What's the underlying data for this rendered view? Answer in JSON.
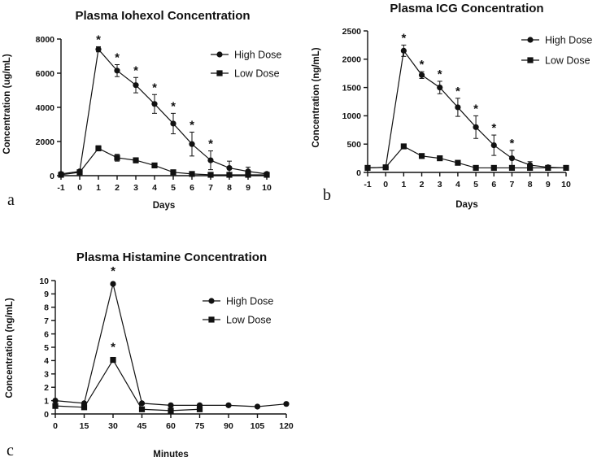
{
  "chart_data": [
    {
      "type": "line",
      "panel_label": "a",
      "title": "Plasma Iohexol Concentration",
      "xlabel": "Days",
      "ylabel": "Concentration (ug/mL)",
      "xlim": [
        -1,
        10
      ],
      "ylim": [
        0,
        8000
      ],
      "x_ticks": [
        -1,
        0,
        1,
        2,
        3,
        4,
        5,
        6,
        7,
        8,
        9,
        10
      ],
      "y_ticks": [
        0,
        2000,
        4000,
        6000,
        8000
      ],
      "significance_marker": "*",
      "significant_x": [
        1,
        2,
        3,
        4,
        5,
        6,
        7
      ],
      "legend": [
        "High Dose",
        "Low Dose"
      ],
      "series": [
        {
          "name": "High Dose",
          "marker": "circle",
          "x": [
            -1,
            0,
            1,
            2,
            3,
            4,
            5,
            6,
            7,
            8,
            9,
            10
          ],
          "values": [
            100,
            250,
            7400,
            6150,
            5300,
            4200,
            3050,
            1850,
            900,
            450,
            250,
            100
          ],
          "error": [
            0,
            0,
            150,
            350,
            450,
            550,
            600,
            700,
            550,
            400,
            250,
            0
          ]
        },
        {
          "name": "Low Dose",
          "marker": "square",
          "x": [
            -1,
            0,
            1,
            2,
            3,
            4,
            5,
            6,
            7,
            8,
            9,
            10
          ],
          "values": [
            50,
            200,
            1600,
            1050,
            900,
            600,
            200,
            100,
            50,
            50,
            50,
            50
          ],
          "error": [
            0,
            0,
            150,
            200,
            150,
            100,
            0,
            0,
            0,
            0,
            0,
            0
          ]
        }
      ]
    },
    {
      "type": "line",
      "panel_label": "b",
      "title": "Plasma ICG Concentration",
      "xlabel": "Days",
      "ylabel": "Concentration (ng/mL)",
      "xlim": [
        -1,
        10
      ],
      "ylim": [
        0,
        2500
      ],
      "x_ticks": [
        -1,
        0,
        1,
        2,
        3,
        4,
        5,
        6,
        7,
        8,
        9,
        10
      ],
      "y_ticks": [
        0,
        500,
        1000,
        1500,
        2000,
        2500
      ],
      "significance_marker": "*",
      "significant_x": [
        1,
        2,
        3,
        4,
        5,
        6,
        7
      ],
      "legend": [
        "High Dose",
        "Low Dose"
      ],
      "series": [
        {
          "name": "High Dose",
          "marker": "circle",
          "x": [
            -1,
            0,
            1,
            2,
            3,
            4,
            5,
            6,
            7,
            8,
            9,
            10
          ],
          "values": [
            80,
            90,
            2150,
            1720,
            1500,
            1150,
            800,
            480,
            250,
            130,
            90,
            80
          ],
          "error": [
            0,
            0,
            100,
            60,
            110,
            160,
            200,
            180,
            140,
            60,
            0,
            0
          ]
        },
        {
          "name": "Low Dose",
          "marker": "square",
          "x": [
            -1,
            0,
            1,
            2,
            3,
            4,
            5,
            6,
            7,
            8,
            9,
            10
          ],
          "values": [
            80,
            90,
            460,
            290,
            250,
            170,
            80,
            80,
            80,
            80,
            80,
            80
          ],
          "error": [
            0,
            0,
            0,
            40,
            40,
            30,
            0,
            0,
            0,
            0,
            0,
            0
          ]
        }
      ]
    },
    {
      "type": "line",
      "panel_label": "c",
      "title": "Plasma Histamine Concentration",
      "xlabel": "Minutes",
      "ylabel": "Concentration (ng/mL)",
      "xlim": [
        0,
        120
      ],
      "ylim": [
        0,
        10
      ],
      "x_ticks": [
        0,
        15,
        30,
        45,
        60,
        75,
        90,
        105,
        120
      ],
      "y_ticks": [
        0,
        1,
        2,
        3,
        4,
        5,
        6,
        7,
        8,
        9,
        10
      ],
      "significance_marker": "*",
      "significant_points": [
        {
          "x": 30,
          "y": 9.75
        },
        {
          "x": 30,
          "y": 4.05
        }
      ],
      "legend": [
        "High Dose",
        "Low Dose"
      ],
      "series": [
        {
          "name": "High Dose",
          "marker": "circle",
          "x": [
            0,
            15,
            30,
            45,
            60,
            75,
            90,
            105,
            120
          ],
          "values": [
            1.0,
            0.8,
            9.75,
            0.8,
            0.65,
            0.65,
            0.65,
            0.55,
            0.75
          ]
        },
        {
          "name": "Low Dose",
          "marker": "square",
          "x": [
            0,
            15,
            30,
            45,
            60,
            75
          ],
          "values": [
            0.6,
            0.5,
            4.05,
            0.35,
            0.25,
            0.35
          ]
        }
      ]
    }
  ]
}
